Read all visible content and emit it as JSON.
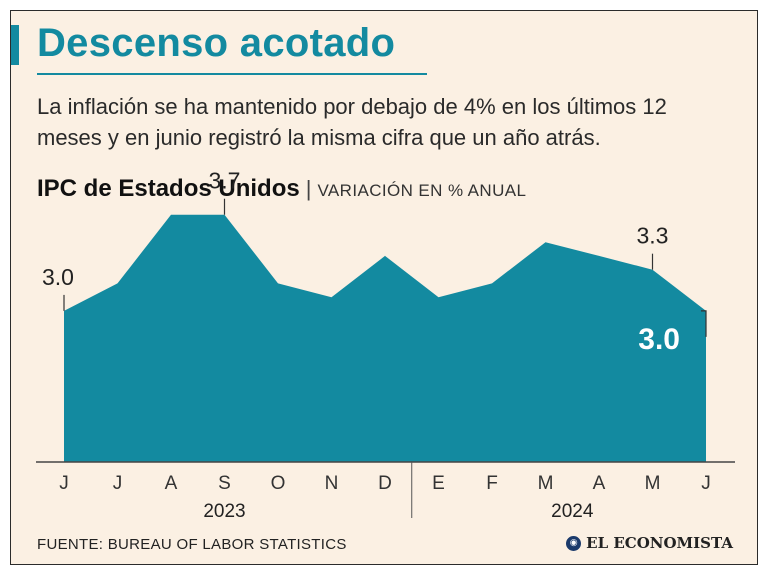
{
  "header": {
    "title": "Descenso acotado",
    "subtitle": "La inflación se ha mantenido por debajo de 4% en los últimos 12 meses y en junio registró la misma cifra que un año atrás."
  },
  "chart_heading": {
    "main": "IPC de Estados Unidos",
    "separator": "|",
    "unit": "VARIACIÓN EN % ANUAL"
  },
  "chart_data": {
    "type": "area",
    "title": "IPC de Estados Unidos",
    "ylabel": "VARIACIÓN EN % ANUAL",
    "categories": [
      "J",
      "J",
      "A",
      "S",
      "O",
      "N",
      "D",
      "E",
      "F",
      "M",
      "A",
      "M",
      "J"
    ],
    "years": [
      "2023",
      "2024"
    ],
    "year_spans": [
      [
        0,
        6
      ],
      [
        7,
        12
      ]
    ],
    "series": [
      {
        "name": "IPC",
        "values": [
          3.0,
          3.2,
          3.7,
          3.7,
          3.2,
          3.1,
          3.4,
          3.1,
          3.2,
          3.5,
          3.4,
          3.3,
          3.0
        ]
      }
    ],
    "annotations": [
      {
        "index": 0,
        "label": "3.0",
        "style": "normal"
      },
      {
        "index": 3,
        "label": "3.7",
        "style": "normal"
      },
      {
        "index": 11,
        "label": "3.3",
        "style": "normal"
      },
      {
        "index": 12,
        "label": "3.0",
        "style": "highlight"
      }
    ],
    "ylim": [
      1.9,
      3.8
    ],
    "grid": false,
    "fill_color": "#138aa0"
  },
  "footer": {
    "source": "FUENTE: BUREAU OF LABOR STATISTICS",
    "logo_text": "EL ECONOMISTA",
    "logo_icon": "globe-icon"
  }
}
